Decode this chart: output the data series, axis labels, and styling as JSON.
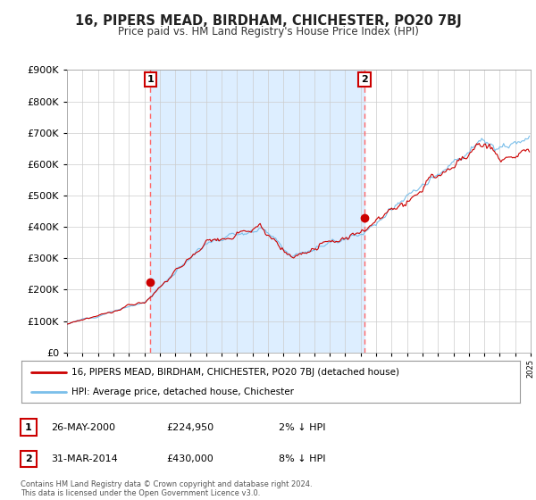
{
  "title": "16, PIPERS MEAD, BIRDHAM, CHICHESTER, PO20 7BJ",
  "subtitle": "Price paid vs. HM Land Registry's House Price Index (HPI)",
  "y_ticks": [
    0,
    100000,
    200000,
    300000,
    400000,
    500000,
    600000,
    700000,
    800000,
    900000
  ],
  "x_start_year": 1995,
  "x_end_year": 2025,
  "sale1_date": 2000.4,
  "sale1_price": 224950,
  "sale1_label": "1",
  "sale2_date": 2014.25,
  "sale2_price": 430000,
  "sale2_label": "2",
  "legend_line1": "16, PIPERS MEAD, BIRDHAM, CHICHESTER, PO20 7BJ (detached house)",
  "legend_line2": "HPI: Average price, detached house, Chichester",
  "table_row1": [
    "1",
    "26-MAY-2000",
    "£224,950",
    "2% ↓ HPI"
  ],
  "table_row2": [
    "2",
    "31-MAR-2014",
    "£430,000",
    "8% ↓ HPI"
  ],
  "footer": "Contains HM Land Registry data © Crown copyright and database right 2024.\nThis data is licensed under the Open Government Licence v3.0.",
  "hpi_color": "#7bbfea",
  "price_color": "#cc0000",
  "sale_dot_color": "#cc0000",
  "vline_color": "#ff6666",
  "shade_color": "#ddeeff",
  "bg_color": "#ffffff",
  "grid_color": "#cccccc",
  "table_border_color": "#cc0000"
}
